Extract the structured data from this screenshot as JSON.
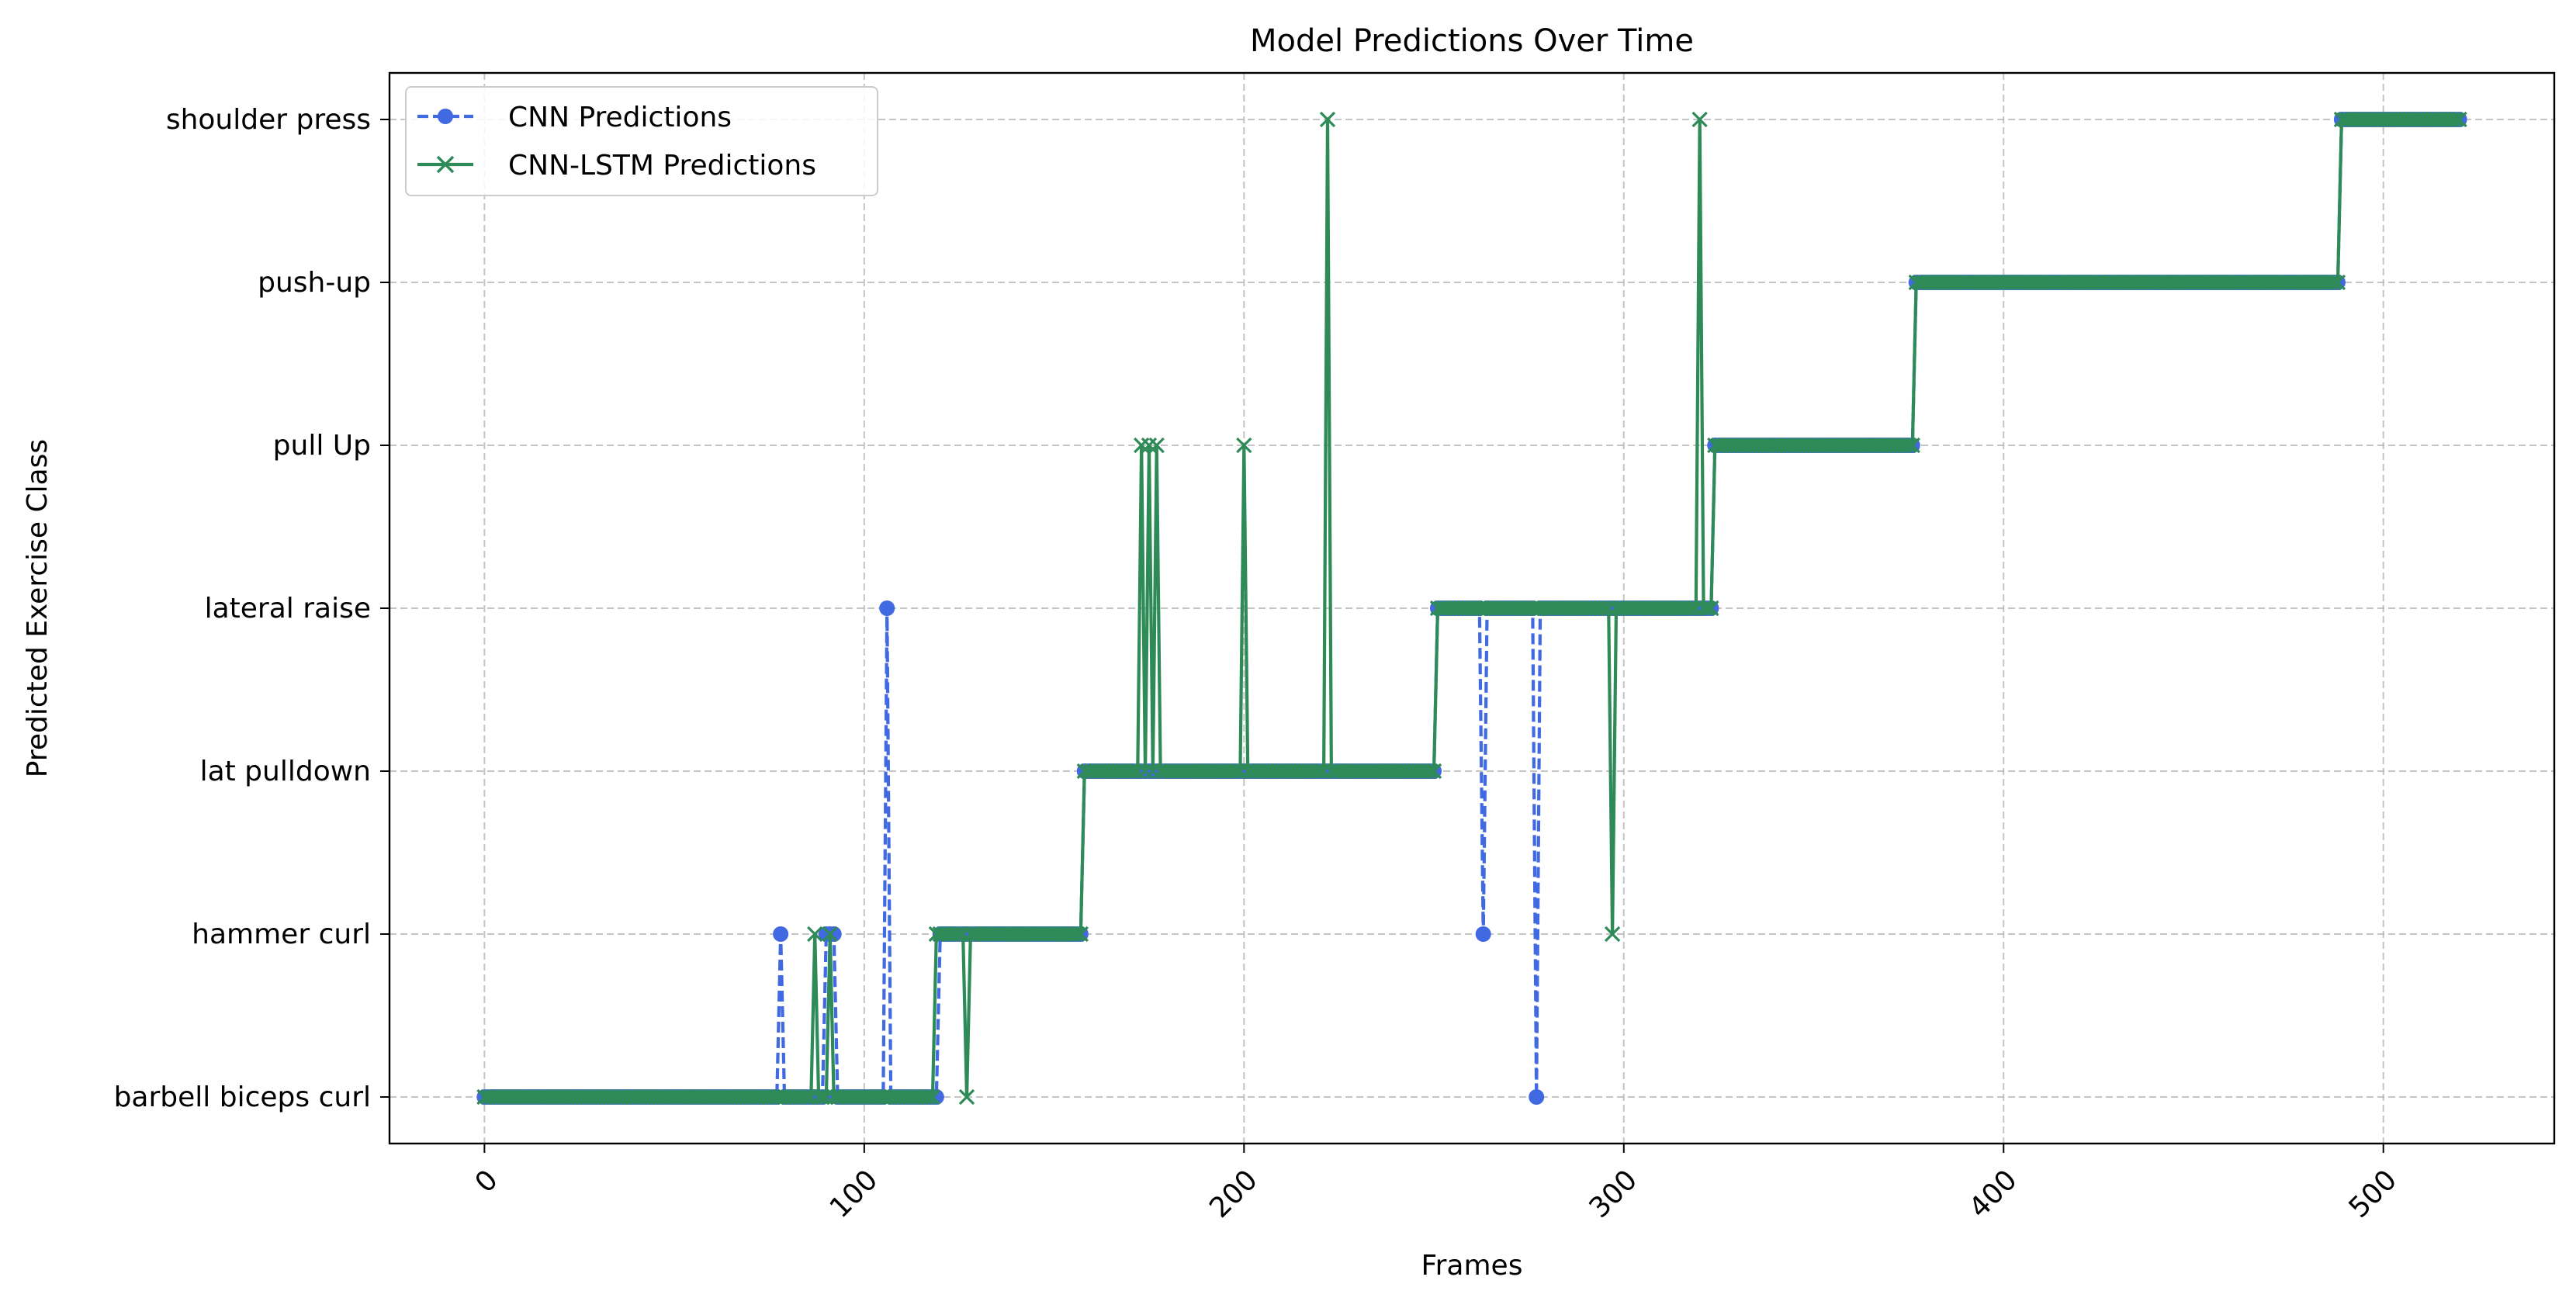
{
  "chart_data": {
    "type": "line",
    "title": "Model Predictions Over Time",
    "xlabel": "Frames",
    "ylabel": "Predicted Exercise Class",
    "xlim": [
      -25,
      545
    ],
    "xticks": [
      0,
      100,
      200,
      300,
      400,
      500
    ],
    "xtick_rotation": 45,
    "categories_y": [
      "barbell biceps curl",
      "hammer curl",
      "lat pulldown",
      "lateral raise",
      "pull Up",
      "push-up",
      "shoulder press"
    ],
    "grid": true,
    "legend_position": "top-left",
    "series": [
      {
        "name": "CNN Predictions",
        "color": "#4169e1",
        "line_style": "dashed",
        "marker": "circle",
        "segments": [
          [
            0,
            0,
            77
          ],
          [
            1,
            78,
            78
          ],
          [
            0,
            79,
            89
          ],
          [
            1,
            90,
            92
          ],
          [
            0,
            93,
            105
          ],
          [
            3,
            106,
            106
          ],
          [
            0,
            107,
            119
          ],
          [
            1,
            120,
            157
          ],
          [
            2,
            158,
            250
          ],
          [
            3,
            251,
            262
          ],
          [
            1,
            263,
            263
          ],
          [
            3,
            264,
            276
          ],
          [
            0,
            277,
            277
          ],
          [
            3,
            278,
            323
          ],
          [
            4,
            324,
            376
          ],
          [
            5,
            377,
            488
          ],
          [
            6,
            489,
            520
          ]
        ]
      },
      {
        "name": "CNN-LSTM Predictions",
        "color": "#2e8b57",
        "line_style": "solid",
        "marker": "x",
        "segments": [
          [
            0,
            0,
            86
          ],
          [
            1,
            87,
            87
          ],
          [
            0,
            88,
            90
          ],
          [
            1,
            91,
            91
          ],
          [
            0,
            92,
            118
          ],
          [
            1,
            119,
            126
          ],
          [
            0,
            127,
            127
          ],
          [
            1,
            128,
            157
          ],
          [
            2,
            158,
            172
          ],
          [
            4,
            173,
            173
          ],
          [
            2,
            174,
            174
          ],
          [
            4,
            175,
            175
          ],
          [
            2,
            176,
            176
          ],
          [
            4,
            177,
            177
          ],
          [
            2,
            178,
            199
          ],
          [
            4,
            200,
            200
          ],
          [
            2,
            201,
            221
          ],
          [
            6,
            222,
            222
          ],
          [
            2,
            223,
            250
          ],
          [
            3,
            251,
            296
          ],
          [
            1,
            297,
            297
          ],
          [
            3,
            298,
            319
          ],
          [
            6,
            320,
            320
          ],
          [
            3,
            321,
            323
          ],
          [
            4,
            324,
            376
          ],
          [
            5,
            377,
            488
          ],
          [
            6,
            489,
            520
          ]
        ]
      }
    ]
  }
}
